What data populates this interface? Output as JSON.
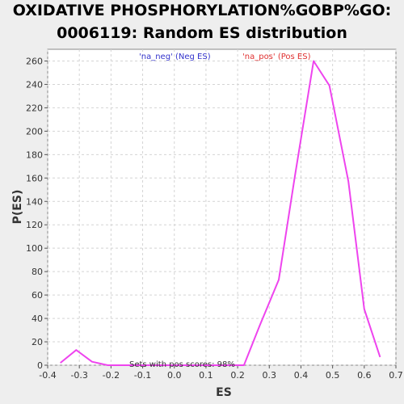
{
  "chart_data": {
    "type": "line",
    "title_lines": [
      "OXIDATIVE PHOSPHORYLATION%GOBP%GO:",
      "0006119: Random ES distribution"
    ],
    "xlabel": "ES",
    "ylabel": "P(ES)",
    "xlim": [
      -0.4,
      0.7
    ],
    "ylim": [
      0,
      270
    ],
    "x_ticks": [
      "-0.4",
      "-0.3",
      "-0.2",
      "-0.1",
      "0.0",
      "0.1",
      "0.2",
      "0.3",
      "0.4",
      "0.5",
      "0.6",
      "0.7"
    ],
    "y_ticks": [
      "0",
      "20",
      "40",
      "60",
      "80",
      "100",
      "120",
      "140",
      "160",
      "180",
      "200",
      "220",
      "240",
      "260"
    ],
    "grid": true,
    "legend": [
      {
        "label": "'na_neg' (Neg ES)",
        "color": "#3333cc"
      },
      {
        "label": "'na_pos' (Pos ES)",
        "color": "#e03030"
      }
    ],
    "annotation": "Sets with pos scores: 98%",
    "series": [
      {
        "color": "#ee44ee",
        "x": [
          -0.36,
          -0.31,
          -0.26,
          -0.21,
          -0.15,
          -0.1,
          -0.05,
          0.0,
          0.06,
          0.12,
          0.17,
          0.22,
          0.27,
          0.33,
          0.38,
          0.44,
          0.49,
          0.55,
          0.6,
          0.65
        ],
        "y": [
          2,
          13,
          3,
          0,
          0,
          0,
          0,
          0,
          0,
          0,
          0,
          0,
          34,
          73,
          160,
          260,
          239,
          157,
          48,
          7
        ]
      }
    ]
  }
}
